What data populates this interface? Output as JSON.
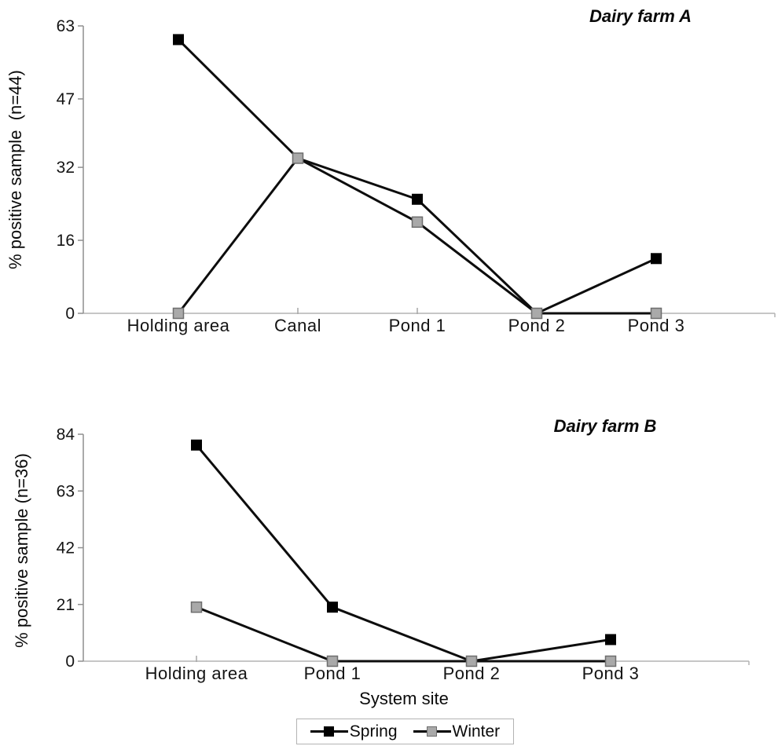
{
  "figure": {
    "xlabel": "System site",
    "legend": {
      "items": [
        {
          "label": "Spring",
          "marker": "black-square"
        },
        {
          "label": "Winter",
          "marker": "gray-square"
        }
      ]
    }
  },
  "chart_data": [
    {
      "type": "line",
      "title": "Dairy farm A",
      "ylabel": "% positive sample  (n=44)",
      "xlabel": "System site",
      "categories": [
        "Holding area",
        "Canal",
        "Pond 1",
        "Pond 2",
        "Pond 3"
      ],
      "yticks": [
        0,
        16,
        32,
        47,
        63
      ],
      "ylim": [
        0,
        63
      ],
      "grid": false,
      "series": [
        {
          "name": "Spring",
          "values": [
            60,
            34,
            25,
            0,
            12
          ]
        },
        {
          "name": "Winter",
          "values": [
            0,
            34,
            20,
            0,
            0
          ]
        }
      ]
    },
    {
      "type": "line",
      "title": "Dairy farm B",
      "ylabel": "% positive sample (n=36)",
      "xlabel": "System site",
      "categories": [
        "Holding area",
        "Pond 1",
        "Pond 2",
        "Pond 3"
      ],
      "yticks": [
        0,
        21,
        42,
        63,
        84
      ],
      "ylim": [
        0,
        84
      ],
      "grid": false,
      "series": [
        {
          "name": "Spring",
          "values": [
            80,
            20,
            0,
            8
          ]
        },
        {
          "name": "Winter",
          "values": [
            20,
            0,
            0,
            0
          ]
        }
      ]
    }
  ],
  "styles": {
    "spring_color": "#000000",
    "winter_fill": "#a9a9a9",
    "winter_stroke": "#6e6e6e",
    "line_color": "#0d0d0d",
    "x_axis_color": "#b3b3b3",
    "y_axis_color": "#8f8f8f",
    "category_tick_color": "#a6a6a6",
    "line_width": 3,
    "marker_size": 13
  }
}
